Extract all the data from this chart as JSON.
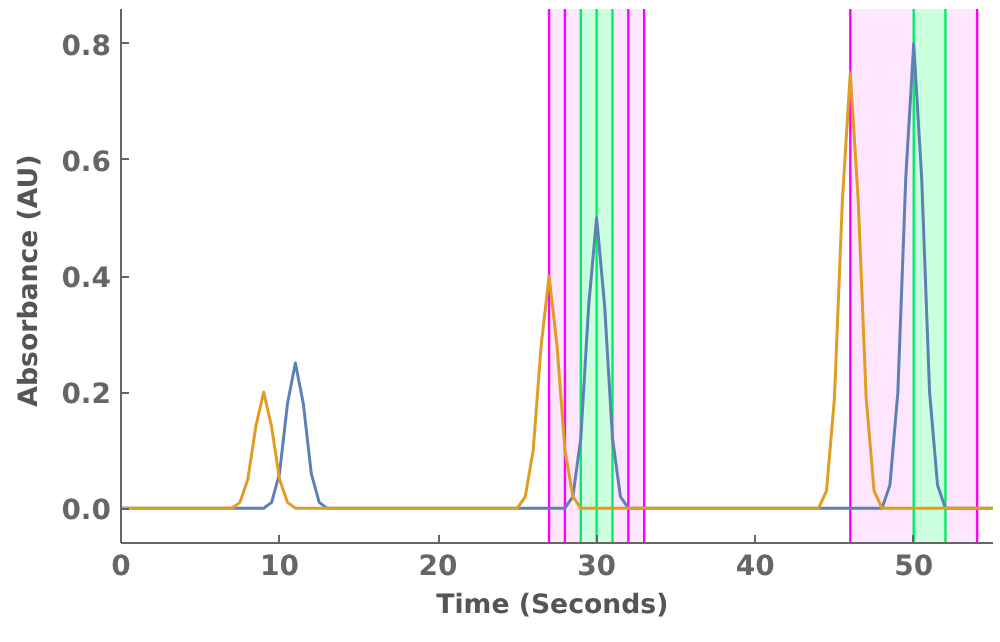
{
  "chart_data": {
    "type": "line",
    "xlabel": "Time  (Seconds)",
    "ylabel": "Absorbance  (AU)",
    "xlim": [
      0,
      55
    ],
    "ylim": [
      -0.06,
      0.86
    ],
    "xticks": [
      0,
      10,
      20,
      30,
      40,
      50
    ],
    "yticks": [
      {
        "value": 0,
        "label": "0.0"
      },
      0.2,
      0.4,
      0.6,
      0.8
    ],
    "grid": false,
    "marker": "none",
    "line_style": "solid",
    "series": [
      {
        "color": "#5e81b5",
        "x": [
          0,
          9,
          9.5,
          10,
          10.5,
          11,
          11.5,
          12,
          12.5,
          13,
          28,
          28.5,
          29,
          29.5,
          30,
          30.5,
          31,
          31.5,
          32,
          48,
          48.5,
          49,
          49.5,
          50,
          50.5,
          51,
          51.5,
          52,
          55
        ],
        "values": [
          0,
          0,
          0.01,
          0.06,
          0.18,
          0.25,
          0.18,
          0.06,
          0.01,
          0,
          0,
          0.02,
          0.12,
          0.35,
          0.5,
          0.35,
          0.12,
          0.02,
          0,
          0,
          0.04,
          0.2,
          0.57,
          0.8,
          0.57,
          0.2,
          0.04,
          0,
          0
        ]
      },
      {
        "color": "#e19c24",
        "x": [
          0,
          7,
          7.5,
          8,
          8.5,
          9,
          9.5,
          10,
          10.5,
          11,
          25,
          25.5,
          26,
          26.5,
          27,
          27.5,
          28,
          28.5,
          29,
          44,
          44.5,
          45,
          45.5,
          46,
          46.5,
          47,
          47.5,
          48,
          55
        ],
        "values": [
          0,
          0,
          0.01,
          0.05,
          0.14,
          0.2,
          0.14,
          0.05,
          0.01,
          0,
          0,
          0.02,
          0.1,
          0.28,
          0.4,
          0.28,
          0.1,
          0.02,
          0,
          0,
          0.03,
          0.19,
          0.53,
          0.75,
          0.53,
          0.19,
          0.03,
          0,
          0
        ]
      }
    ],
    "bands": [
      {
        "axis": "x",
        "from": 27,
        "to": 33,
        "color": "#ffe6ff"
      },
      {
        "axis": "x",
        "from": 46,
        "to": 54,
        "color": "#ffe6ff"
      },
      {
        "axis": "x",
        "from": 29,
        "to": 31,
        "color": "#ccffdd"
      },
      {
        "axis": "x",
        "from": 50,
        "to": 52,
        "color": "#ccffdd"
      }
    ],
    "ref_lines": [
      {
        "axis": "x",
        "value": 27,
        "color": "#ff00ff"
      },
      {
        "axis": "x",
        "value": 28,
        "color": "#ff00ff"
      },
      {
        "axis": "x",
        "value": 32,
        "color": "#ff00ff"
      },
      {
        "axis": "x",
        "value": 33,
        "color": "#ff00ff"
      },
      {
        "axis": "x",
        "value": 29,
        "color": "#00ee66"
      },
      {
        "axis": "x",
        "value": 30,
        "color": "#00ee66"
      },
      {
        "axis": "x",
        "value": 31,
        "color": "#00ee66"
      },
      {
        "axis": "x",
        "value": 46,
        "color": "#ff00ff"
      },
      {
        "axis": "x",
        "value": 54,
        "color": "#ff00ff"
      },
      {
        "axis": "x",
        "value": 50,
        "color": "#00ee66"
      },
      {
        "axis": "x",
        "value": 52,
        "color": "#00ee66"
      }
    ]
  }
}
